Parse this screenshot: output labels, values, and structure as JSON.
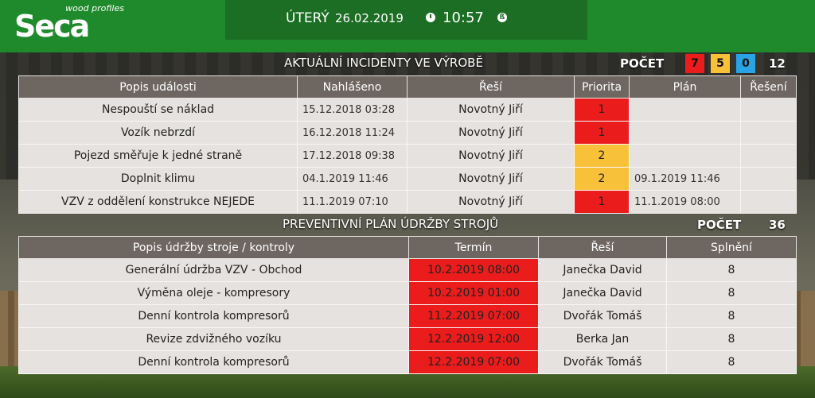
{
  "colors": {
    "header_green": "#1f8a2c",
    "date_panel_green": "#1b6e23",
    "priority_red": "#ea1c1c",
    "priority_yellow": "#f7c13a",
    "priority_blue": "#29a3e6",
    "table_header": "#6e6660",
    "table_cell": "#e6e2df"
  },
  "header": {
    "logo_text": "Seca",
    "logo_subtitle": "wood profiles",
    "day": "ÚTERÝ",
    "date": "26.02.2019",
    "time": "10:57",
    "clock_icon": "clock-icon",
    "info_icon": "info-icon"
  },
  "incidents": {
    "title": "AKTUÁLNÍ INCIDENTY VE VÝROBĚ",
    "count_label": "POČET",
    "count_red": "7",
    "count_yellow": "5",
    "count_blue": "0",
    "count_total": "12",
    "columns": [
      "Popis události",
      "Nahlášeno",
      "Řeší",
      "Priorita",
      "Plán",
      "Řešení"
    ],
    "rows": [
      {
        "popis": "Nespouští se náklad",
        "nahlaseno": "15.12.2018 03:28",
        "resi": "Novotný Jiří",
        "priorita": "1",
        "plan": "",
        "reseni": ""
      },
      {
        "popis": "Vozík nebrzdí",
        "nahlaseno": "16.12.2018 11:24",
        "resi": "Novotný Jiří",
        "priorita": "1",
        "plan": "",
        "reseni": ""
      },
      {
        "popis": "Pojezd směřuje k jedné straně",
        "nahlaseno": "17.12.2018 09:38",
        "resi": "Novotný Jiří",
        "priorita": "2",
        "plan": "",
        "reseni": ""
      },
      {
        "popis": "Doplnit klimu",
        "nahlaseno": "04.1.2019 11:46",
        "resi": "Novotný Jiří",
        "priorita": "2",
        "plan": "09.1.2019 11:46",
        "reseni": ""
      },
      {
        "popis": "VZV z oddělení konstrukce NEJEDE",
        "nahlaseno": "11.1.2019 07:10",
        "resi": "Novotný Jiří",
        "priorita": "1",
        "plan": "11.1.2019 08:00",
        "reseni": ""
      }
    ]
  },
  "maintenance": {
    "title": "PREVENTIVNÍ PLÁN ÚDRŽBY STROJŮ",
    "count_label": "POČET",
    "count_total": "36",
    "columns": [
      "Popis údržby stroje / kontroly",
      "Termín",
      "Řeší",
      "Splnění"
    ],
    "rows": [
      {
        "popis": "Generální údržba VZV - Obchod",
        "termin": "10.2.2019 08:00",
        "resi": "Janečka David",
        "splneni": "8"
      },
      {
        "popis": "Výměna oleje - kompresory",
        "termin": "10.2.2019 01:00",
        "resi": "Janečka David",
        "splneni": "8"
      },
      {
        "popis": "Denní kontrola kompresorů",
        "termin": "11.2.2019 07:00",
        "resi": "Dvořák Tomáš",
        "splneni": "8"
      },
      {
        "popis": "Revize zdvižného vozíku",
        "termin": "12.2.2019 12:00",
        "resi": "Berka Jan",
        "splneni": "8"
      },
      {
        "popis": "Denní kontrola kompresorů",
        "termin": "12.2.2019 07:00",
        "resi": "Dvořák Tomáš",
        "splneni": "8"
      }
    ]
  }
}
